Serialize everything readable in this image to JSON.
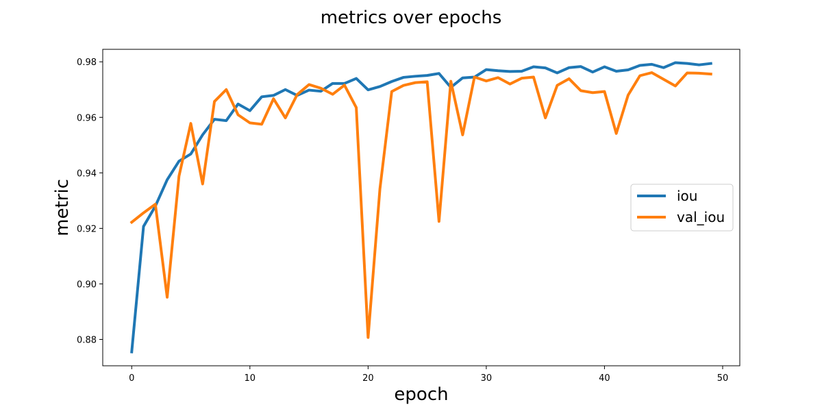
{
  "chart_data": {
    "type": "line",
    "title": "metrics over epochs",
    "xlabel": "epoch",
    "ylabel": "metric",
    "xlim": [
      -2.45,
      51.45
    ],
    "ylim": [
      0.8705,
      0.9845
    ],
    "xticks": [
      0,
      10,
      20,
      30,
      40,
      50
    ],
    "yticks": [
      0.88,
      0.9,
      0.92,
      0.94,
      0.96,
      0.98
    ],
    "ytick_labels": [
      "0.88",
      "0.90",
      "0.92",
      "0.94",
      "0.96",
      "0.98"
    ],
    "grid": false,
    "legend_position": "center-right",
    "x": [
      0,
      1,
      2,
      3,
      4,
      5,
      6,
      7,
      8,
      9,
      10,
      11,
      12,
      13,
      14,
      15,
      16,
      17,
      18,
      19,
      20,
      21,
      22,
      23,
      24,
      25,
      26,
      27,
      28,
      29,
      30,
      31,
      32,
      33,
      34,
      35,
      36,
      37,
      38,
      39,
      40,
      41,
      42,
      43,
      44,
      45,
      46,
      47,
      48,
      49
    ],
    "series": [
      {
        "name": "iou",
        "color": "#1f77b4",
        "values": [
          0.8755,
          0.9207,
          0.928,
          0.9375,
          0.9442,
          0.9468,
          0.9537,
          0.9593,
          0.9588,
          0.9648,
          0.9624,
          0.9674,
          0.9679,
          0.97,
          0.9679,
          0.9698,
          0.9694,
          0.9722,
          0.9722,
          0.974,
          0.9699,
          0.9711,
          0.9729,
          0.9744,
          0.9748,
          0.9751,
          0.9758,
          0.9708,
          0.9742,
          0.9745,
          0.9772,
          0.9768,
          0.9765,
          0.9766,
          0.9782,
          0.9778,
          0.976,
          0.9779,
          0.9783,
          0.9763,
          0.9782,
          0.9766,
          0.9771,
          0.9787,
          0.9791,
          0.9779,
          0.9797,
          0.9794,
          0.9789,
          0.9794
        ]
      },
      {
        "name": "val_iou",
        "color": "#ff7f0e",
        "values": [
          0.9222,
          0.9256,
          0.9287,
          0.8952,
          0.9388,
          0.9578,
          0.936,
          0.9657,
          0.97,
          0.9609,
          0.958,
          0.9575,
          0.9667,
          0.9598,
          0.9682,
          0.9718,
          0.9705,
          0.9683,
          0.9716,
          0.9635,
          0.8807,
          0.9342,
          0.9693,
          0.9715,
          0.9725,
          0.9728,
          0.9225,
          0.973,
          0.9537,
          0.9745,
          0.9731,
          0.9743,
          0.972,
          0.9741,
          0.9745,
          0.9598,
          0.9715,
          0.9739,
          0.9696,
          0.9689,
          0.9693,
          0.9542,
          0.968,
          0.975,
          0.9761,
          0.9737,
          0.9713,
          0.976,
          0.9759,
          0.9756
        ]
      }
    ]
  }
}
